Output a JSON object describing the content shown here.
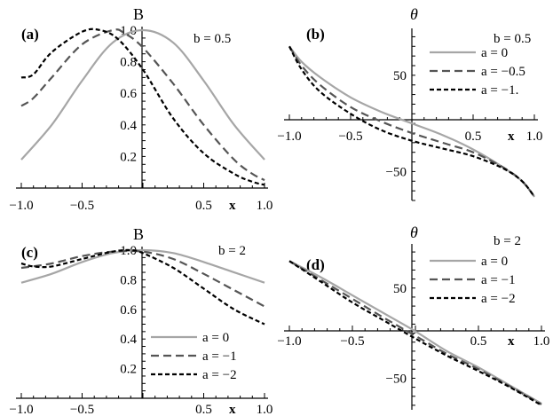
{
  "colors": {
    "a0": "#a6a6a6",
    "a1": "#555555",
    "a2": "#000000"
  },
  "chart_data": [
    {
      "type": "line",
      "panel_label": "(a)",
      "ylabel": "B",
      "xlabel": "x",
      "param_text": "b = 0.5",
      "xlim": [
        -1,
        1
      ],
      "ylim": [
        0,
        1.0
      ],
      "xticks": [
        {
          "v": -1,
          "t": "−1.0"
        },
        {
          "v": -0.5,
          "t": "−0.5"
        },
        {
          "v": 0.5,
          "t": "0.5"
        },
        {
          "v": 1,
          "t": "1.0"
        }
      ],
      "yticks": [
        {
          "v": 0.2,
          "t": "0.2"
        },
        {
          "v": 0.4,
          "t": "0.4"
        },
        {
          "v": 0.6,
          "t": "0.6"
        },
        {
          "v": 0.8,
          "t": "0.8"
        },
        {
          "v": 1.0,
          "t": "1.0"
        }
      ],
      "legend": null,
      "series": [
        {
          "a": 0,
          "x": [
            -1,
            -0.75,
            -0.5,
            -0.25,
            0,
            0.25,
            0.5,
            0.75,
            1
          ],
          "values": [
            0.18,
            0.4,
            0.68,
            0.92,
            1.0,
            0.92,
            0.68,
            0.4,
            0.18
          ]
        },
        {
          "a": -0.5,
          "x": [
            -1,
            -0.9,
            -0.75,
            -0.5,
            -0.25,
            -0.15,
            0,
            0.25,
            0.5,
            0.75,
            0.9,
            1
          ],
          "values": [
            0.52,
            0.57,
            0.7,
            0.91,
            1.0,
            0.98,
            0.89,
            0.66,
            0.4,
            0.18,
            0.09,
            0.05
          ]
        },
        {
          "a": -1,
          "x": [
            -1,
            -0.9,
            -0.75,
            -0.5,
            -0.35,
            -0.2,
            0,
            0.25,
            0.5,
            0.75,
            0.9,
            1
          ],
          "values": [
            0.7,
            0.72,
            0.86,
            0.99,
            1.0,
            0.94,
            0.75,
            0.44,
            0.22,
            0.09,
            0.04,
            0.02
          ]
        }
      ]
    },
    {
      "type": "line",
      "panel_label": "(b)",
      "ylabel": "θ",
      "xlabel": "x",
      "param_text": "b = 0.5",
      "xlim": [
        -1,
        1
      ],
      "ylim": [
        -80,
        95
      ],
      "xticks": [
        {
          "v": -1,
          "t": "−1.0"
        },
        {
          "v": -0.5,
          "t": "−0.5"
        },
        {
          "v": 0.5,
          "t": "0.5"
        },
        {
          "v": 1,
          "t": "1.0"
        }
      ],
      "yticks": [
        {
          "v": 50,
          "t": "50"
        },
        {
          "v": -50,
          "t": "−50"
        }
      ],
      "legend": [
        "a = 0",
        "a = −0.5",
        "a = −1."
      ],
      "series": [
        {
          "a": 0,
          "x": [
            -1,
            -0.9,
            -0.75,
            -0.5,
            -0.25,
            0,
            0.25,
            0.5,
            0.75,
            0.9,
            1
          ],
          "values": [
            80,
            64,
            48,
            27,
            12,
            0,
            -12,
            -27,
            -46,
            -60,
            -76
          ]
        },
        {
          "a": -0.5,
          "x": [
            -1,
            -0.9,
            -0.75,
            -0.5,
            -0.25,
            0,
            0.25,
            0.5,
            0.75,
            0.9,
            1
          ],
          "values": [
            80,
            60,
            40,
            17,
            2,
            -10,
            -20,
            -30,
            -46,
            -60,
            -76
          ]
        },
        {
          "a": -1,
          "x": [
            -1,
            -0.9,
            -0.75,
            -0.5,
            -0.25,
            0,
            0.25,
            0.5,
            0.75,
            0.9,
            1
          ],
          "values": [
            80,
            56,
            33,
            10,
            -7,
            -18,
            -26,
            -34,
            -47,
            -60,
            -76
          ]
        }
      ]
    },
    {
      "type": "line",
      "panel_label": "(c)",
      "ylabel": "B",
      "xlabel": "x",
      "param_text": "b = 2",
      "xlim": [
        -1,
        1
      ],
      "ylim": [
        0,
        1.0
      ],
      "xticks": [
        {
          "v": -1,
          "t": "−1.0"
        },
        {
          "v": -0.5,
          "t": "−0.5"
        },
        {
          "v": 0.5,
          "t": "0.5"
        },
        {
          "v": 1,
          "t": "1.0"
        }
      ],
      "yticks": [
        {
          "v": 0.2,
          "t": "0.2"
        },
        {
          "v": 0.4,
          "t": "0.4"
        },
        {
          "v": 0.6,
          "t": "0.6"
        },
        {
          "v": 0.8,
          "t": "0.8"
        },
        {
          "v": 1.0,
          "t": "1.0"
        }
      ],
      "legend": [
        "a = 0",
        "a = −1",
        "a = −2"
      ],
      "series": [
        {
          "a": 0,
          "x": [
            -1,
            -0.75,
            -0.5,
            -0.25,
            0,
            0.25,
            0.5,
            0.75,
            1
          ],
          "values": [
            0.78,
            0.84,
            0.92,
            0.98,
            1.0,
            0.98,
            0.92,
            0.85,
            0.78
          ]
        },
        {
          "a": -1,
          "x": [
            -1,
            -0.75,
            -0.5,
            -0.25,
            0,
            0.25,
            0.5,
            0.75,
            1
          ],
          "values": [
            0.88,
            0.91,
            0.96,
            0.99,
            0.99,
            0.94,
            0.84,
            0.73,
            0.62
          ]
        },
        {
          "a": -2,
          "x": [
            -1,
            -0.9,
            -0.75,
            -0.5,
            -0.25,
            -0.1,
            0,
            0.25,
            0.5,
            0.75,
            1
          ],
          "values": [
            0.91,
            0.89,
            0.89,
            0.94,
            0.99,
            1.0,
            0.98,
            0.88,
            0.74,
            0.6,
            0.5
          ]
        }
      ]
    },
    {
      "type": "line",
      "panel_label": "(d)",
      "ylabel": "θ",
      "xlabel": "x",
      "param_text": "b = 2",
      "xlim": [
        -1,
        1
      ],
      "ylim": [
        -85,
        95
      ],
      "xticks": [
        {
          "v": -1,
          "t": "−1.0"
        },
        {
          "v": -0.5,
          "t": "−0.5"
        },
        {
          "v": 0.5,
          "t": "0.5"
        },
        {
          "v": 1,
          "t": "1.0"
        }
      ],
      "yticks": [
        {
          "v": 50,
          "t": "50"
        },
        {
          "v": -50,
          "t": "−50"
        }
      ],
      "legend": [
        "a = 0",
        "a = −1",
        "a = −2"
      ],
      "series": [
        {
          "a": 0,
          "x": [
            -1,
            -0.75,
            -0.5,
            -0.25,
            0,
            0.25,
            0.5,
            0.75,
            1
          ],
          "values": [
            80,
            62,
            42,
            22,
            2,
            -20,
            -38,
            -58,
            -78
          ]
        },
        {
          "a": -1,
          "x": [
            -1,
            -0.75,
            -0.5,
            -0.25,
            0,
            0.25,
            0.5,
            0.75,
            1
          ],
          "values": [
            80,
            59,
            38,
            17,
            -3,
            -23,
            -40,
            -59,
            -79
          ]
        },
        {
          "a": -2,
          "x": [
            -1,
            -0.75,
            -0.5,
            -0.25,
            0,
            0.25,
            0.5,
            0.75,
            1
          ],
          "values": [
            80,
            57,
            34,
            14,
            -6,
            -25,
            -42,
            -60,
            -80
          ]
        }
      ]
    }
  ]
}
